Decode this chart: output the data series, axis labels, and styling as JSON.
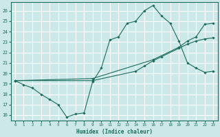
{
  "xlabel": "Humidex (Indice chaleur)",
  "bg_color": "#cce8e8",
  "grid_color": "#ffffff",
  "line_color": "#1a6b5a",
  "xlim": [
    -0.5,
    23.5
  ],
  "ylim": [
    15.5,
    26.8
  ],
  "yticks": [
    16,
    17,
    18,
    19,
    20,
    21,
    22,
    23,
    24,
    25,
    26
  ],
  "xticks": [
    0,
    1,
    2,
    3,
    4,
    5,
    6,
    7,
    8,
    9,
    10,
    11,
    12,
    13,
    14,
    15,
    16,
    17,
    18,
    19,
    20,
    21,
    22,
    23
  ],
  "line1_x": [
    0,
    1,
    2,
    3,
    4,
    5,
    6,
    7,
    8,
    9,
    10,
    11,
    12,
    13,
    14,
    15,
    16,
    17,
    18,
    19,
    20,
    21,
    22,
    23
  ],
  "line1_y": [
    19.3,
    18.9,
    18.6,
    18.0,
    17.5,
    17.0,
    15.8,
    16.1,
    16.2,
    19.2,
    20.5,
    23.2,
    23.5,
    24.8,
    25.0,
    26.0,
    26.5,
    25.5,
    24.8,
    23.1,
    21.0,
    20.5,
    20.1,
    20.2
  ],
  "line2_x": [
    0,
    9,
    16,
    19,
    20,
    21,
    22,
    23
  ],
  "line2_y": [
    19.3,
    19.5,
    21.3,
    22.5,
    23.1,
    23.5,
    24.7,
    24.8
  ],
  "line3_x": [
    0,
    9,
    14,
    15,
    16,
    17,
    19,
    20,
    21,
    22,
    23
  ],
  "line3_y": [
    19.3,
    19.3,
    20.2,
    20.7,
    21.2,
    21.6,
    22.4,
    22.8,
    23.1,
    23.3,
    23.4
  ]
}
